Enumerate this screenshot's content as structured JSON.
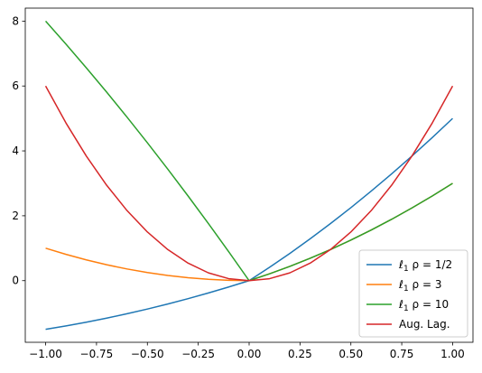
{
  "chart_data": {
    "type": "line",
    "title": "",
    "xlabel": "",
    "ylabel": "",
    "xlim": [
      -1.1,
      1.1
    ],
    "ylim": [
      -1.9,
      8.4
    ],
    "grid": false,
    "legend_position": "lower-right",
    "x_ticks": [
      -1.0,
      -0.75,
      -0.5,
      -0.25,
      0.0,
      0.25,
      0.5,
      0.75,
      1.0
    ],
    "x_tick_labels": [
      "−1.00",
      "−0.75",
      "−0.50",
      "−0.25",
      "0.00",
      "0.25",
      "0.50",
      "0.75",
      "1.00"
    ],
    "y_ticks": [
      0,
      2,
      4,
      6,
      8
    ],
    "y_tick_labels": [
      "0",
      "2",
      "4",
      "6",
      "8"
    ],
    "x": [
      -1.0,
      -0.9,
      -0.8,
      -0.7,
      -0.6,
      -0.5,
      -0.4,
      -0.3,
      -0.2,
      -0.1,
      0.0,
      0.1,
      0.2,
      0.3,
      0.4,
      0.5,
      0.6,
      0.7,
      0.8,
      0.9,
      1.0
    ],
    "series": [
      {
        "name": "ℓ1 ρ = 1/2",
        "color": "#1f77b4",
        "values": [
          -1.5,
          -1.395,
          -1.28,
          -1.155,
          -1.02,
          -0.875,
          -0.72,
          -0.555,
          -0.38,
          -0.195,
          0.0,
          0.41,
          0.84,
          1.29,
          1.76,
          2.25,
          2.76,
          3.29,
          3.84,
          4.41,
          5.0
        ]
      },
      {
        "name": "ℓ1 ρ = 3",
        "color": "#ff7f0e",
        "values": [
          1.0,
          0.81,
          0.64,
          0.49,
          0.36,
          0.25,
          0.16,
          0.09,
          0.04,
          0.01,
          0.0,
          0.21,
          0.44,
          0.69,
          0.96,
          1.25,
          1.56,
          1.89,
          2.24,
          2.61,
          3.0
        ]
      },
      {
        "name": "ℓ1 ρ = 10",
        "color": "#2ca02c",
        "values": [
          8.0,
          7.29,
          6.56,
          5.81,
          5.04,
          4.25,
          3.44,
          2.61,
          1.76,
          0.89,
          0.0,
          0.21,
          0.44,
          0.69,
          0.96,
          1.25,
          1.56,
          1.89,
          2.24,
          2.61,
          3.0
        ]
      },
      {
        "name": "Aug. Lag.",
        "color": "#d62728",
        "values": [
          6.0,
          4.86,
          3.84,
          2.94,
          2.16,
          1.5,
          0.96,
          0.54,
          0.24,
          0.06,
          0.0,
          0.06,
          0.24,
          0.54,
          0.96,
          1.5,
          2.16,
          2.94,
          3.84,
          4.86,
          6.0
        ]
      }
    ],
    "legend": [
      {
        "base": "ℓ",
        "sub": "1",
        "rest": " ρ = 1/2"
      },
      {
        "base": "ℓ",
        "sub": "1",
        "rest": " ρ = 3"
      },
      {
        "base": "ℓ",
        "sub": "1",
        "rest": " ρ = 10"
      },
      {
        "base": "Aug. Lag.",
        "sub": "",
        "rest": ""
      }
    ]
  }
}
